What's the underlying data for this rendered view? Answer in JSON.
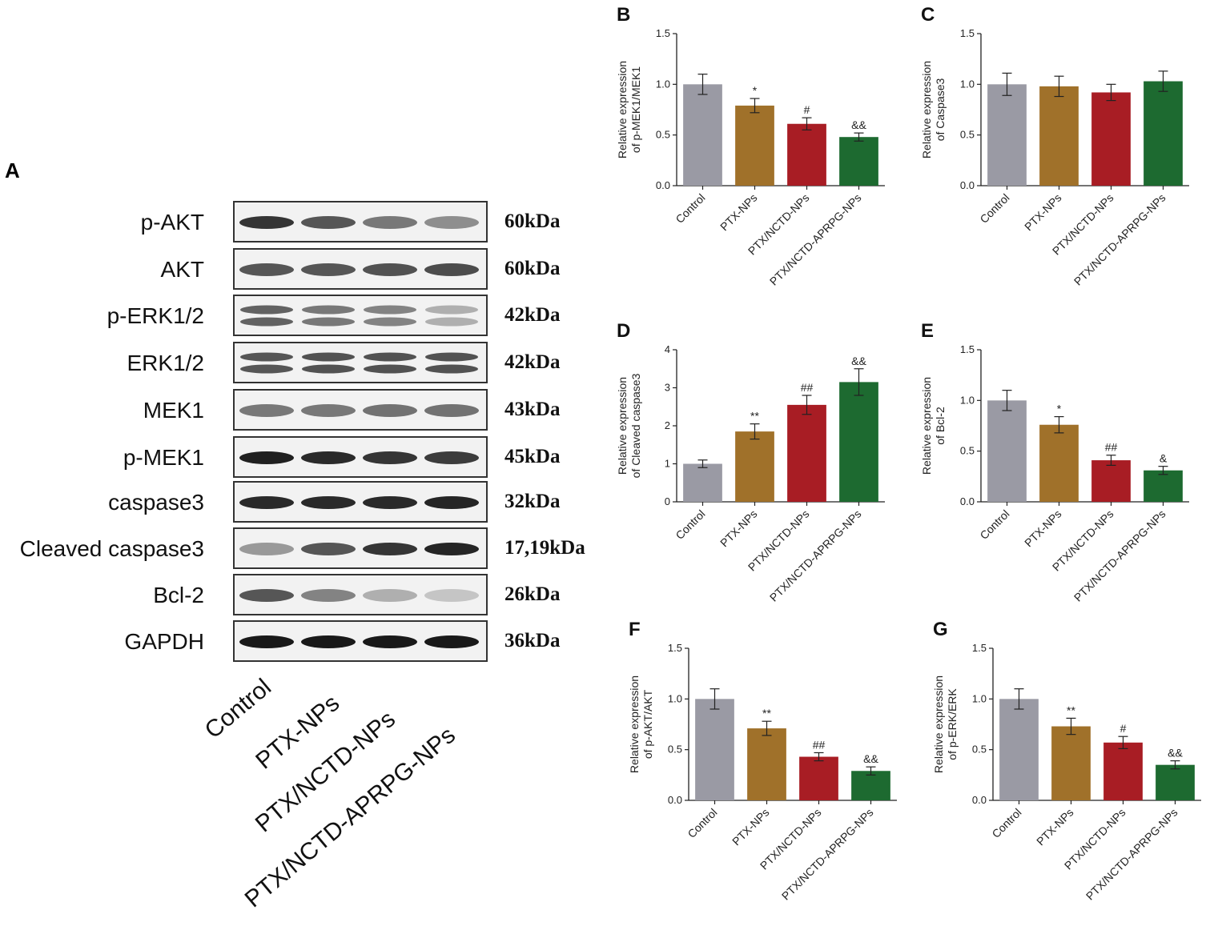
{
  "blot": {
    "panel_letter": "A",
    "rows": [
      {
        "label": "p-AKT",
        "size": "60kDa",
        "intensities": [
          0.85,
          0.7,
          0.55,
          0.45
        ],
        "double": false
      },
      {
        "label": "AKT",
        "size": "60kDa",
        "intensities": [
          0.7,
          0.7,
          0.72,
          0.75
        ],
        "double": false
      },
      {
        "label": "p-ERK1/2",
        "size": "42kDa",
        "intensities": [
          0.65,
          0.55,
          0.5,
          0.3
        ],
        "double": true
      },
      {
        "label": "ERK1/2",
        "size": "42kDa",
        "intensities": [
          0.7,
          0.72,
          0.72,
          0.72
        ],
        "double": true
      },
      {
        "label": "MEK1",
        "size": "43kDa",
        "intensities": [
          0.55,
          0.55,
          0.58,
          0.58
        ],
        "double": false
      },
      {
        "label": "p-MEK1",
        "size": "45kDa",
        "intensities": [
          0.95,
          0.9,
          0.85,
          0.82
        ],
        "double": false
      },
      {
        "label": "caspase3",
        "size": "32kDa",
        "intensities": [
          0.9,
          0.9,
          0.9,
          0.92
        ],
        "double": false
      },
      {
        "label": "Cleaved caspase3",
        "size": "17,19kDa",
        "intensities": [
          0.4,
          0.7,
          0.85,
          0.92
        ],
        "double": false
      },
      {
        "label": "Bcl-2",
        "size": "26kDa",
        "intensities": [
          0.7,
          0.5,
          0.3,
          0.2
        ],
        "double": false
      },
      {
        "label": "GAPDH",
        "size": "36kDa",
        "intensities": [
          0.98,
          0.98,
          0.98,
          0.98
        ],
        "double": false
      }
    ],
    "lanes": [
      "Control",
      "PTX-NPs",
      "PTX/NCTD-NPs",
      "PTX/NCTD-APRPG-NPs"
    ]
  },
  "colors": [
    "#9a9aa4",
    "#a0712a",
    "#a81d24",
    "#1d6a30"
  ],
  "chart_data": [
    {
      "panel": "B",
      "type": "bar",
      "categories": [
        "Control",
        "PTX-NPs",
        "PTX/NCTD-NPs",
        "PTX/NCTD-APRPG-NPs"
      ],
      "values": [
        1.0,
        0.79,
        0.61,
        0.48
      ],
      "errors": [
        0.1,
        0.07,
        0.06,
        0.04
      ],
      "significance": [
        "",
        "*",
        "#",
        "&&"
      ],
      "ylabel": "Relative expression of p-MEK1/MEK1",
      "ylim": [
        0,
        1.5
      ],
      "yticks": [
        "0.0",
        "0.5",
        "1.0",
        "1.5"
      ]
    },
    {
      "panel": "C",
      "type": "bar",
      "categories": [
        "Control",
        "PTX-NPs",
        "PTX/NCTD-NPs",
        "PTX/NCTD-APRPG-NPs"
      ],
      "values": [
        1.0,
        0.98,
        0.92,
        1.03
      ],
      "errors": [
        0.11,
        0.1,
        0.08,
        0.1
      ],
      "significance": [
        "",
        "",
        "",
        ""
      ],
      "ylabel": "Relative expression of Caspase3",
      "ylim": [
        0,
        1.5
      ],
      "yticks": [
        "0.0",
        "0.5",
        "1.0",
        "1.5"
      ]
    },
    {
      "panel": "D",
      "type": "bar",
      "categories": [
        "Control",
        "PTX-NPs",
        "PTX/NCTD-NPs",
        "PTX/NCTD-APRPG-NPs"
      ],
      "values": [
        1.0,
        1.85,
        2.55,
        3.15
      ],
      "errors": [
        0.1,
        0.2,
        0.25,
        0.35
      ],
      "significance": [
        "",
        "**",
        "##",
        "&&"
      ],
      "ylabel": "Relative expression of Cleaved caspase3",
      "ylim": [
        0,
        4
      ],
      "yticks": [
        "0",
        "1",
        "2",
        "3",
        "4"
      ]
    },
    {
      "panel": "E",
      "type": "bar",
      "categories": [
        "Control",
        "PTX-NPs",
        "PTX/NCTD-NPs",
        "PTX/NCTD-APRPG-NPs"
      ],
      "values": [
        1.0,
        0.76,
        0.41,
        0.31
      ],
      "errors": [
        0.1,
        0.08,
        0.05,
        0.04
      ],
      "significance": [
        "",
        "*",
        "##",
        "&"
      ],
      "ylabel": "Relative expression of Bcl-2",
      "ylim": [
        0,
        1.5
      ],
      "yticks": [
        "0.0",
        "0.5",
        "1.0",
        "1.5"
      ]
    },
    {
      "panel": "F",
      "type": "bar",
      "categories": [
        "Control",
        "PTX-NPs",
        "PTX/NCTD-NPs",
        "PTX/NCTD-APRPG-NPs"
      ],
      "values": [
        1.0,
        0.71,
        0.43,
        0.29
      ],
      "errors": [
        0.1,
        0.07,
        0.04,
        0.04
      ],
      "significance": [
        "",
        "**",
        "##",
        "&&"
      ],
      "ylabel": "Relative expression of p-AKT/AKT",
      "ylim": [
        0,
        1.5
      ],
      "yticks": [
        "0.0",
        "0.5",
        "1.0",
        "1.5"
      ]
    },
    {
      "panel": "G",
      "type": "bar",
      "categories": [
        "Control",
        "PTX-NPs",
        "PTX/NCTD-NPs",
        "PTX/NCTD-APRPG-NPs"
      ],
      "values": [
        1.0,
        0.73,
        0.57,
        0.35
      ],
      "errors": [
        0.1,
        0.08,
        0.06,
        0.04
      ],
      "significance": [
        "",
        "**",
        "#",
        "&&"
      ],
      "ylabel": "Relative expression of p-ERK/ERK",
      "ylim": [
        0,
        1.5
      ],
      "yticks": [
        "0.0",
        "0.5",
        "1.0",
        "1.5"
      ]
    }
  ]
}
